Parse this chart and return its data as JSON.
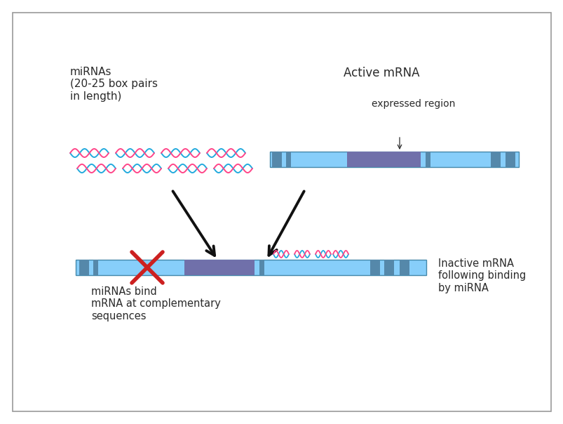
{
  "light_blue": "#87CEFA",
  "dark_blue_seg": "#5588AA",
  "purple": "#7070AA",
  "red": "#CC2020",
  "pink": "#FF4488",
  "cyan": "#22AADD",
  "text_color": "#2a2a2a",
  "border_color": "#999999",
  "arrow_color": "#111111",
  "label_mirna": "miRNAs\n(20-25 box pairs\nin length)",
  "label_active": "Active mRNA",
  "label_expressed": "expressed region",
  "label_inactive": "Inactive mRNA\nfollowing binding\nby miRNA",
  "label_bind": "miRNAs bind\nmRNA at complementary\nsequences"
}
